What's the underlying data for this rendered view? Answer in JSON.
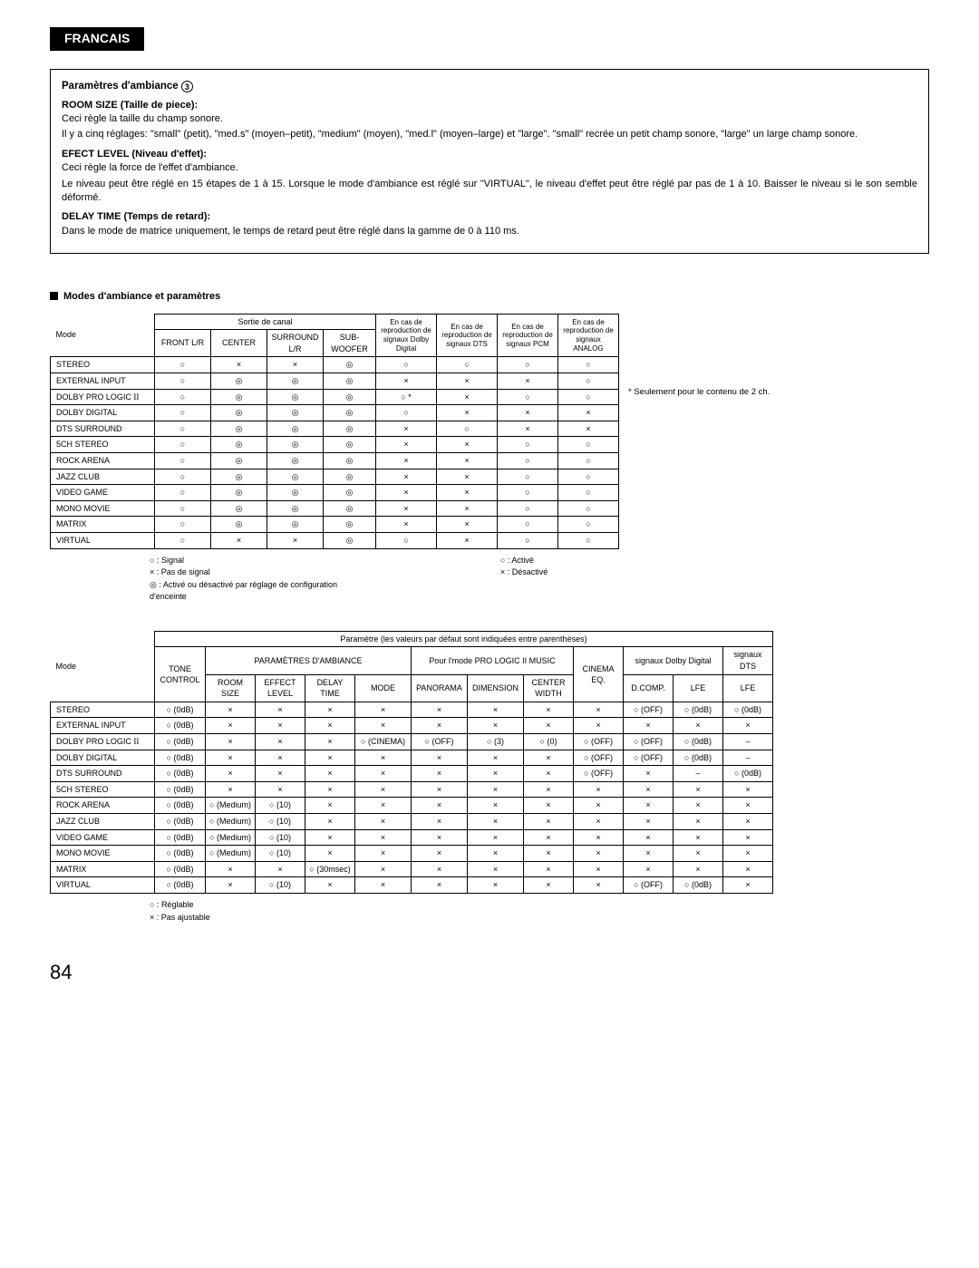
{
  "lang": "FRANCAIS",
  "box": {
    "heading": "Paramètres d'ambiance",
    "circleNum": "3",
    "roomSize": {
      "title": "ROOM SIZE (Taille de piece):",
      "l1": "Ceci règle la taille du champ sonore.",
      "l2": "Il y a cinq réglages: \"small\" (petit), \"med.s\" (moyen–petit), \"medium\" (moyen), \"med.l\" (moyen–large) et \"large\". \"small\" recrée un petit champ sonore, \"large\" un large champ sonore."
    },
    "effect": {
      "title": "EFECT LEVEL (Niveau d'effet):",
      "l1": "Ceci règle la force de l'effet d'ambiance.",
      "l2": "Le niveau peut être réglé en 15 étapes de 1 à 15. Lorsque le mode d'ambiance est réglé sur \"VIRTUAL\", le niveau d'effet peut être réglé par pas de 1 à 10. Baisser le niveau si le son semble déformé."
    },
    "delay": {
      "title": "DELAY TIME (Temps de retard):",
      "l1": "Dans le mode de matrice uniquement, le temps de retard peut être réglé dans la gamme de 0 à 110 ms."
    }
  },
  "modesHeader": "Modes d'ambiance et paramètres",
  "table1": {
    "modeHdr": "Mode",
    "chanHdr": "Sortie de canal",
    "cols": [
      "FRONT L/R",
      "CENTER",
      "SURROUND L/R",
      "SUB-WOOFER"
    ],
    "sigCols": [
      "En cas de reproduction de signaux Dolby Digital",
      "En cas de reproduction de signaux DTS",
      "En cas de reproduction de signaux PCM",
      "En cas de reproduction de signaux ANALOG"
    ],
    "rows": [
      {
        "m": "STEREO",
        "c": [
          "○",
          "×",
          "×",
          "◎",
          "○",
          "○",
          "○",
          "○"
        ]
      },
      {
        "m": "EXTERNAL INPUT",
        "c": [
          "○",
          "◎",
          "◎",
          "◎",
          "×",
          "×",
          "×",
          "○"
        ]
      },
      {
        "m": "DOLBY PRO LOGIC II",
        "c": [
          "○",
          "◎",
          "◎",
          "◎",
          "○  *",
          "×",
          "○",
          "○"
        ],
        "roman": true
      },
      {
        "m": "DOLBY DIGITAL",
        "c": [
          "○",
          "◎",
          "◎",
          "◎",
          "○",
          "×",
          "×",
          "×"
        ]
      },
      {
        "m": "DTS SURROUND",
        "c": [
          "○",
          "◎",
          "◎",
          "◎",
          "×",
          "○",
          "×",
          "×"
        ]
      },
      {
        "m": "5CH STEREO",
        "c": [
          "○",
          "◎",
          "◎",
          "◎",
          "×",
          "×",
          "○",
          "○"
        ]
      },
      {
        "m": "ROCK ARENA",
        "c": [
          "○",
          "◎",
          "◎",
          "◎",
          "×",
          "×",
          "○",
          "○"
        ]
      },
      {
        "m": "JAZZ CLUB",
        "c": [
          "○",
          "◎",
          "◎",
          "◎",
          "×",
          "×",
          "○",
          "○"
        ]
      },
      {
        "m": "VIDEO GAME",
        "c": [
          "○",
          "◎",
          "◎",
          "◎",
          "×",
          "×",
          "○",
          "○"
        ]
      },
      {
        "m": "MONO MOVIE",
        "c": [
          "○",
          "◎",
          "◎",
          "◎",
          "×",
          "×",
          "○",
          "○"
        ]
      },
      {
        "m": "MATRIX",
        "c": [
          "○",
          "◎",
          "◎",
          "◎",
          "×",
          "×",
          "○",
          "○"
        ]
      },
      {
        "m": "VIRTUAL",
        "c": [
          "○",
          "×",
          "×",
          "◎",
          "○",
          "×",
          "○",
          "○"
        ]
      }
    ]
  },
  "footnote1": "* Seulement pour le contenu de 2 ch.",
  "legend1": {
    "left": [
      "○ :   Signal",
      "× :   Pas de signal",
      "◎ :   Activé ou désactivé par réglage de configuration",
      "        d'enceinte"
    ],
    "right": [
      "○ :   Activé",
      "× :   Désactivé"
    ]
  },
  "table2": {
    "modeHdr": "Mode",
    "topHdr": "Paramètre (les valeurs par défaut sont indiquées entre parenthèses)",
    "col_tone": "TONE CONTROL",
    "grp_surround": "PARAMÈTRES D'AMBIANCE",
    "surroundCols": [
      "ROOM SIZE",
      "EFFECT LEVEL",
      "DELAY TIME",
      "MODE"
    ],
    "grp_pl2": "Pour l'mode PRO LOGIC II MUSIC",
    "pl2Cols": [
      "PANORAMA",
      "DIMENSION",
      "CENTER WIDTH"
    ],
    "col_cinema": "CINEMA EQ.",
    "grp_dd": "signaux Dolby Digital",
    "ddCols": [
      "D.COMP.",
      "LFE"
    ],
    "grp_dts": "signaux DTS",
    "dtsCols": [
      "LFE"
    ],
    "rows": [
      {
        "m": "STEREO",
        "c": [
          "○ (0dB)",
          "×",
          "×",
          "×",
          "×",
          "×",
          "×",
          "×",
          "×",
          "○ (OFF)",
          "○ (0dB)",
          "○ (0dB)"
        ]
      },
      {
        "m": "EXTERNAL INPUT",
        "c": [
          "○ (0dB)",
          "×",
          "×",
          "×",
          "×",
          "×",
          "×",
          "×",
          "×",
          "×",
          "×",
          "×"
        ]
      },
      {
        "m": "DOLBY PRO LOGIC II",
        "c": [
          "○ (0dB)",
          "×",
          "×",
          "×",
          "○ (CINEMA)",
          "○ (OFF)",
          "○ (3)",
          "○ (0)",
          "○ (OFF)",
          "○ (OFF)",
          "○ (0dB)",
          "–"
        ],
        "roman": true
      },
      {
        "m": "DOLBY DIGITAL",
        "c": [
          "○ (0dB)",
          "×",
          "×",
          "×",
          "×",
          "×",
          "×",
          "×",
          "○ (OFF)",
          "○ (OFF)",
          "○ (0dB)",
          "–"
        ]
      },
      {
        "m": "DTS SURROUND",
        "c": [
          "○ (0dB)",
          "×",
          "×",
          "×",
          "×",
          "×",
          "×",
          "×",
          "○ (OFF)",
          "×",
          "–",
          "○ (0dB)"
        ]
      },
      {
        "m": "5CH STEREO",
        "c": [
          "○ (0dB)",
          "×",
          "×",
          "×",
          "×",
          "×",
          "×",
          "×",
          "×",
          "×",
          "×",
          "×"
        ]
      },
      {
        "m": "ROCK ARENA",
        "c": [
          "○ (0dB)",
          "○ (Medium)",
          "○ (10)",
          "×",
          "×",
          "×",
          "×",
          "×",
          "×",
          "×",
          "×",
          "×"
        ]
      },
      {
        "m": "JAZZ CLUB",
        "c": [
          "○ (0dB)",
          "○ (Medium)",
          "○ (10)",
          "×",
          "×",
          "×",
          "×",
          "×",
          "×",
          "×",
          "×",
          "×"
        ]
      },
      {
        "m": "VIDEO GAME",
        "c": [
          "○ (0dB)",
          "○ (Medium)",
          "○ (10)",
          "×",
          "×",
          "×",
          "×",
          "×",
          "×",
          "×",
          "×",
          "×"
        ]
      },
      {
        "m": "MONO MOVIE",
        "c": [
          "○ (0dB)",
          "○ (Medium)",
          "○ (10)",
          "×",
          "×",
          "×",
          "×",
          "×",
          "×",
          "×",
          "×",
          "×"
        ]
      },
      {
        "m": "MATRIX",
        "c": [
          "○ (0dB)",
          "×",
          "×",
          "○ (30msec)",
          "×",
          "×",
          "×",
          "×",
          "×",
          "×",
          "×",
          "×"
        ]
      },
      {
        "m": "VIRTUAL",
        "c": [
          "○ (0dB)",
          "×",
          "○ (10)",
          "×",
          "×",
          "×",
          "×",
          "×",
          "×",
          "○ (OFF)",
          "○ (0dB)",
          "×"
        ]
      }
    ]
  },
  "legend2": [
    "○ :   Réglable",
    "× :   Pas ajustable"
  ],
  "pageNum": "84"
}
